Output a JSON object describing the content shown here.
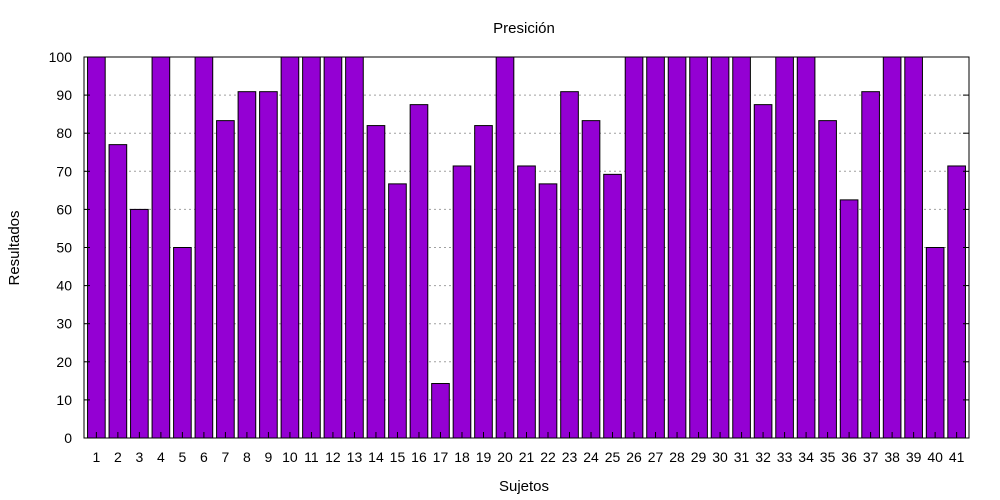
{
  "chart_data": {
    "type": "bar",
    "title": "Presición",
    "xlabel": "Sujetos",
    "ylabel": "Resultados",
    "categories": [
      "1",
      "2",
      "3",
      "4",
      "5",
      "6",
      "7",
      "8",
      "9",
      "10",
      "11",
      "12",
      "13",
      "14",
      "15",
      "16",
      "17",
      "18",
      "19",
      "20",
      "21",
      "22",
      "23",
      "24",
      "25",
      "26",
      "27",
      "28",
      "29",
      "30",
      "31",
      "32",
      "33",
      "34",
      "35",
      "36",
      "37",
      "38",
      "39",
      "40",
      "41"
    ],
    "values": [
      100,
      77,
      60,
      100,
      50,
      100,
      83.3,
      90.9,
      90.9,
      100,
      100,
      100,
      100,
      82,
      66.7,
      87.5,
      14.3,
      71.4,
      82,
      100,
      71.4,
      66.7,
      90.9,
      83.3,
      69.2,
      100,
      100,
      100,
      100,
      100,
      100,
      87.5,
      100,
      100,
      83.3,
      62.5,
      90.9,
      100,
      100,
      50,
      71.4
    ],
    "ylim": [
      0,
      100
    ],
    "yticks": [
      0,
      10,
      20,
      30,
      40,
      50,
      60,
      70,
      80,
      90,
      100
    ],
    "grid": true,
    "legend": "none",
    "bar_color": "#9400d3"
  }
}
